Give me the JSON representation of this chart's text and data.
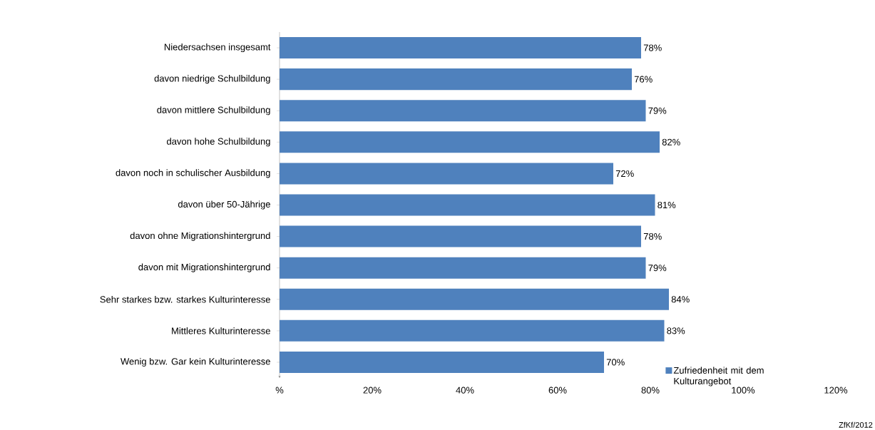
{
  "chart_data": {
    "type": "bar",
    "orientation": "horizontal",
    "categories": [
      "Niedersachsen insgesamt",
      "davon niedrige Schulbildung",
      "davon mittlere Schulbildung",
      "davon hohe Schulbildung",
      "davon noch in schulischer Ausbildung",
      "davon über 50-Jährige",
      "davon ohne Migrationshintergrund",
      "davon mit Migrationshintergrund",
      "Sehr starkes bzw. starkes Kulturinteresse",
      "Mittleres Kulturinteresse",
      "Wenig bzw. Gar kein Kulturinteresse"
    ],
    "series": [
      {
        "name": "Zufriedenheit mit dem Kulturangebot",
        "color": "#4f81bd",
        "values": [
          78,
          76,
          79,
          82,
          72,
          81,
          78,
          79,
          84,
          83,
          70
        ],
        "value_labels": [
          "78%",
          "76%",
          "79%",
          "82%",
          "72%",
          "81%",
          "78%",
          "79%",
          "84%",
          "83%",
          "70%"
        ]
      }
    ],
    "xlim": [
      0,
      120
    ],
    "xticks": [
      {
        "value": 0,
        "label": "%"
      },
      {
        "value": 20,
        "label": "20%"
      },
      {
        "value": 40,
        "label": "40%"
      },
      {
        "value": 60,
        "label": "60%"
      },
      {
        "value": 80,
        "label": "80%"
      },
      {
        "value": 100,
        "label": "100%"
      },
      {
        "value": 120,
        "label": "120%"
      }
    ],
    "legend": "bottom right",
    "annotations": [
      "ZfKf/2012"
    ]
  }
}
